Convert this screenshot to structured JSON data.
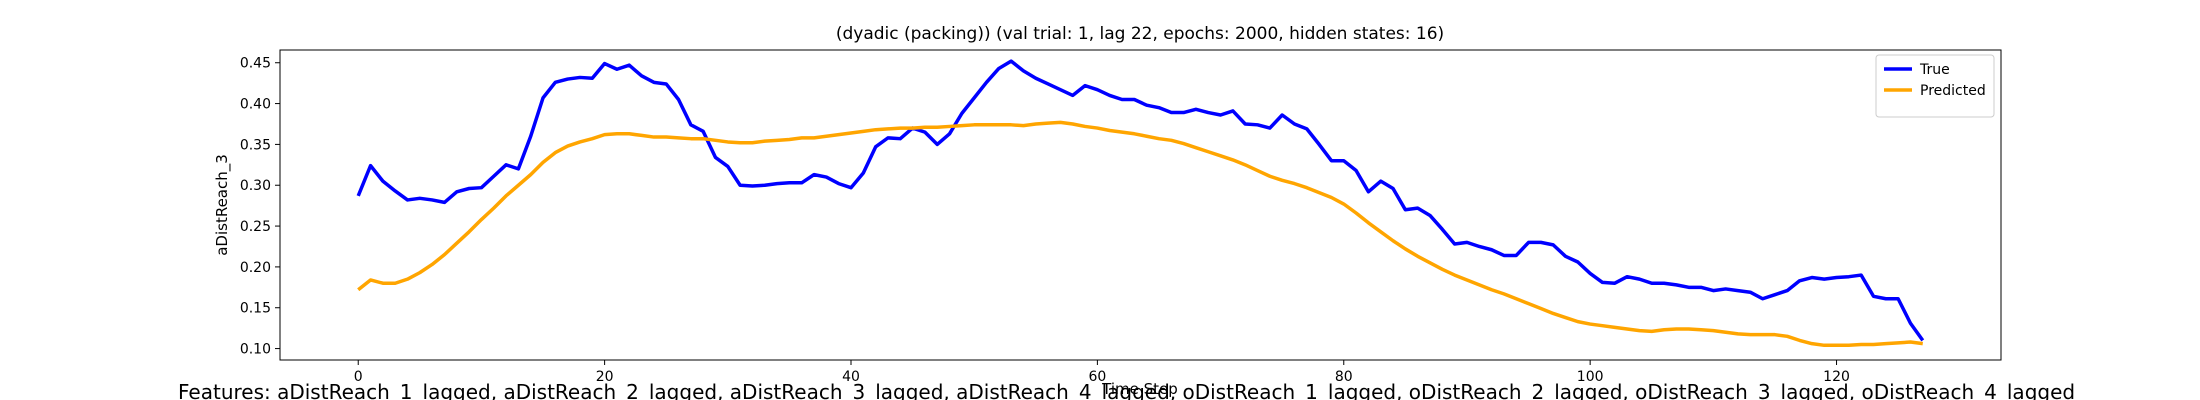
{
  "chart_data": {
    "type": "line",
    "title": "(dyadic (packing)) (val trial: 1, lag 22, epochs: 2000, hidden states: 16)",
    "xlabel": "Time Step",
    "ylabel": "aDistReach_3",
    "annotation": "Features: aDistReach_1_lagged, aDistReach_2_lagged, aDistReach_3_lagged, aDistReach_4_lagged, oDistReach_1_lagged, oDistReach_2_lagged, oDistReach_3_lagged, oDistReach_4_lagged",
    "legend": "upper right",
    "grid": false,
    "xlim": [
      -6.35,
      133.35
    ],
    "ylim": [
      0.086,
      0.4656
    ],
    "xticks": [
      0,
      20,
      40,
      60,
      80,
      100,
      120
    ],
    "yticks": [
      {
        "value": 0.1,
        "label": "0.10"
      },
      0.15,
      {
        "value": 0.2,
        "label": "0.20"
      },
      0.25,
      {
        "value": 0.3,
        "label": "0.30"
      },
      0.35,
      {
        "value": 0.4,
        "label": "0.40"
      },
      0.45
    ],
    "x": [
      0,
      1,
      2,
      3,
      4,
      5,
      6,
      7,
      8,
      9,
      10,
      11,
      12,
      13,
      14,
      15,
      16,
      17,
      18,
      19,
      20,
      21,
      22,
      23,
      24,
      25,
      26,
      27,
      28,
      29,
      30,
      31,
      32,
      33,
      34,
      35,
      36,
      37,
      38,
      39,
      40,
      41,
      42,
      43,
      44,
      45,
      46,
      47,
      48,
      49,
      50,
      51,
      52,
      53,
      54,
      55,
      56,
      57,
      58,
      59,
      60,
      61,
      62,
      63,
      64,
      65,
      66,
      67,
      68,
      69,
      70,
      71,
      72,
      73,
      74,
      75,
      76,
      77,
      78,
      79,
      80,
      81,
      82,
      83,
      84,
      85,
      86,
      87,
      88,
      89,
      90,
      91,
      92,
      93,
      94,
      95,
      96,
      97,
      98,
      99,
      100,
      101,
      102,
      103,
      104,
      105,
      106,
      107,
      108,
      109,
      110,
      111,
      112,
      113,
      114,
      115,
      116,
      117,
      118,
      119,
      120,
      121,
      122,
      123,
      124,
      125,
      126,
      127
    ],
    "series": [
      {
        "name": "True",
        "color": "#0000ff",
        "values": [
          0.287,
          0.324,
          0.305,
          0.293,
          0.282,
          0.284,
          0.282,
          0.279,
          0.292,
          0.296,
          0.297,
          0.311,
          0.325,
          0.32,
          0.36,
          0.407,
          0.426,
          0.43,
          0.432,
          0.431,
          0.449,
          0.442,
          0.447,
          0.434,
          0.426,
          0.424,
          0.405,
          0.374,
          0.366,
          0.334,
          0.323,
          0.3,
          0.299,
          0.3,
          0.302,
          0.303,
          0.303,
          0.313,
          0.31,
          0.302,
          0.297,
          0.315,
          0.347,
          0.358,
          0.357,
          0.37,
          0.365,
          0.35,
          0.363,
          0.388,
          0.407,
          0.426,
          0.443,
          0.452,
          0.44,
          0.431,
          0.424,
          0.417,
          0.41,
          0.422,
          0.417,
          0.41,
          0.405,
          0.405,
          0.398,
          0.395,
          0.389,
          0.389,
          0.393,
          0.389,
          0.386,
          0.391,
          0.375,
          0.374,
          0.37,
          0.386,
          0.375,
          0.369,
          0.35,
          0.33,
          0.33,
          0.318,
          0.292,
          0.305,
          0.296,
          0.27,
          0.272,
          0.263,
          0.246,
          0.228,
          0.23,
          0.225,
          0.221,
          0.214,
          0.214,
          0.23,
          0.23,
          0.227,
          0.213,
          0.206,
          0.192,
          0.181,
          0.18,
          0.188,
          0.185,
          0.18,
          0.18,
          0.178,
          0.175,
          0.175,
          0.171,
          0.173,
          0.171,
          0.169,
          0.161,
          0.166,
          0.171,
          0.183,
          0.187,
          0.185,
          0.187,
          0.188,
          0.19,
          0.164,
          0.161,
          0.161,
          0.131,
          0.11
        ]
      },
      {
        "name": "Predicted",
        "color": "#ffa500",
        "values": [
          0.172,
          0.184,
          0.18,
          0.18,
          0.185,
          0.193,
          0.203,
          0.215,
          0.229,
          0.243,
          0.258,
          0.272,
          0.287,
          0.3,
          0.313,
          0.328,
          0.34,
          0.348,
          0.353,
          0.357,
          0.362,
          0.363,
          0.363,
          0.361,
          0.359,
          0.359,
          0.358,
          0.357,
          0.357,
          0.355,
          0.353,
          0.352,
          0.352,
          0.354,
          0.355,
          0.356,
          0.358,
          0.358,
          0.36,
          0.362,
          0.364,
          0.366,
          0.368,
          0.369,
          0.37,
          0.37,
          0.371,
          0.371,
          0.372,
          0.373,
          0.374,
          0.374,
          0.374,
          0.374,
          0.373,
          0.375,
          0.376,
          0.377,
          0.375,
          0.372,
          0.37,
          0.367,
          0.365,
          0.363,
          0.36,
          0.357,
          0.355,
          0.351,
          0.346,
          0.341,
          0.336,
          0.331,
          0.325,
          0.318,
          0.311,
          0.306,
          0.302,
          0.297,
          0.291,
          0.285,
          0.277,
          0.266,
          0.254,
          0.243,
          0.232,
          0.222,
          0.213,
          0.205,
          0.197,
          0.19,
          0.184,
          0.178,
          0.172,
          0.167,
          0.161,
          0.155,
          0.149,
          0.143,
          0.138,
          0.133,
          0.13,
          0.128,
          0.126,
          0.124,
          0.122,
          0.121,
          0.123,
          0.124,
          0.124,
          0.123,
          0.122,
          0.12,
          0.118,
          0.117,
          0.117,
          0.117,
          0.115,
          0.11,
          0.106,
          0.104,
          0.104,
          0.104,
          0.105,
          0.105,
          0.106,
          0.107,
          0.108,
          0.106
        ]
      }
    ]
  }
}
